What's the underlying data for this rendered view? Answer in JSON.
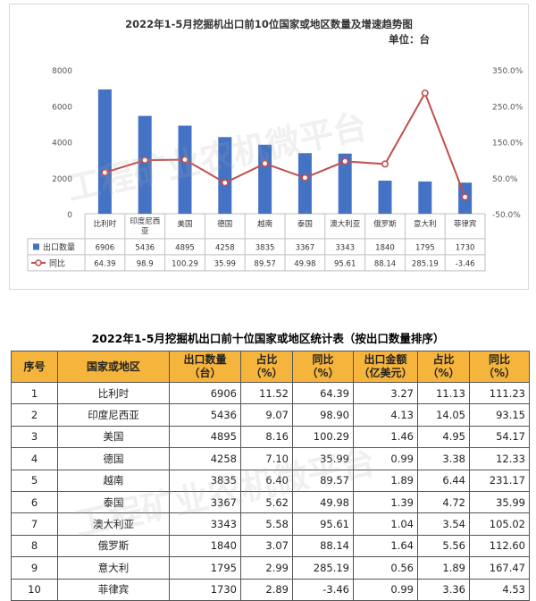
{
  "chart_data": {
    "type": "bar+line",
    "title": "2022年1-5月挖掘机出口前10位国家或地区数量及增速趋势图",
    "unit": "单位：台",
    "categories": [
      "比利时",
      "印度尼西亚",
      "美国",
      "德国",
      "越南",
      "泰国",
      "澳大利亚",
      "俄罗斯",
      "意大利",
      "菲律宾"
    ],
    "category_display": [
      [
        "比利时"
      ],
      [
        "印度尼西",
        "亚"
      ],
      [
        "美国"
      ],
      [
        "德国"
      ],
      [
        "越南"
      ],
      [
        "泰国"
      ],
      [
        "澳大利亚"
      ],
      [
        "俄罗斯"
      ],
      [
        "意大利"
      ],
      [
        "菲律宾"
      ]
    ],
    "series": [
      {
        "name": "出口数量",
        "type": "bar",
        "axis": "left",
        "color": "#4472c4",
        "values": [
          6906,
          5436,
          4895,
          4258,
          3835,
          3367,
          3343,
          1840,
          1795,
          1730
        ],
        "labels": [
          "6906",
          "5436",
          "4895",
          "4258",
          "3835",
          "3367",
          "3343",
          "1840",
          "1795",
          "1730"
        ]
      },
      {
        "name": "同比",
        "type": "line",
        "axis": "right",
        "color": "#c0504d",
        "values": [
          64.39,
          98.9,
          100.29,
          35.99,
          89.57,
          49.98,
          95.61,
          88.14,
          285.19,
          -3.46
        ],
        "labels": [
          "64.39",
          "98.9",
          "100.29",
          "35.99",
          "89.57",
          "49.98",
          "95.61",
          "88.14",
          "285.19",
          "-3.46"
        ]
      }
    ],
    "y_left": {
      "min": 0,
      "max": 8000,
      "ticks": [
        0,
        2000,
        4000,
        6000,
        8000
      ]
    },
    "y_right": {
      "min": -50,
      "max": 350,
      "ticks": [
        "-50.0%",
        "50.0%",
        "150.0%",
        "250.0%",
        "350.0%"
      ]
    },
    "grid": false,
    "legend": "data-table-below"
  },
  "table": {
    "title": "2022年1-5月挖掘机出口前十位国家或地区统计表（按出口数量排序）",
    "headers": [
      [
        "序号"
      ],
      [
        "国家或地区"
      ],
      [
        "出口数量",
        "（台）"
      ],
      [
        "占比",
        "（%）"
      ],
      [
        "同比",
        "（%）"
      ],
      [
        "出口金额",
        "（亿美元）"
      ],
      [
        "占比",
        "（%）"
      ],
      [
        "同比",
        "（%）"
      ]
    ],
    "rows": [
      [
        "1",
        "比利时",
        "6906",
        "11.52",
        "64.39",
        "3.27",
        "11.13",
        "111.23"
      ],
      [
        "2",
        "印度尼西亚",
        "5436",
        "9.07",
        "98.90",
        "4.13",
        "14.05",
        "93.15"
      ],
      [
        "3",
        "美国",
        "4895",
        "8.16",
        "100.29",
        "1.46",
        "4.95",
        "54.17"
      ],
      [
        "4",
        "德国",
        "4258",
        "7.10",
        "35.99",
        "0.99",
        "3.38",
        "12.33"
      ],
      [
        "5",
        "越南",
        "3835",
        "6.40",
        "89.57",
        "1.89",
        "6.44",
        "231.17"
      ],
      [
        "6",
        "泰国",
        "3367",
        "5.62",
        "49.98",
        "1.39",
        "4.72",
        "35.99"
      ],
      [
        "7",
        "澳大利亚",
        "3343",
        "5.58",
        "95.61",
        "1.04",
        "3.54",
        "105.02"
      ],
      [
        "8",
        "俄罗斯",
        "1840",
        "3.07",
        "88.14",
        "1.64",
        "5.56",
        "112.60"
      ],
      [
        "9",
        "意大利",
        "1795",
        "2.99",
        "285.19",
        "0.56",
        "1.89",
        "167.47"
      ],
      [
        "10",
        "菲律宾",
        "1730",
        "2.89",
        "-3.46",
        "0.99",
        "3.36",
        "4.53"
      ]
    ]
  },
  "watermark": {
    "text": "工程矿业农机微平台"
  }
}
